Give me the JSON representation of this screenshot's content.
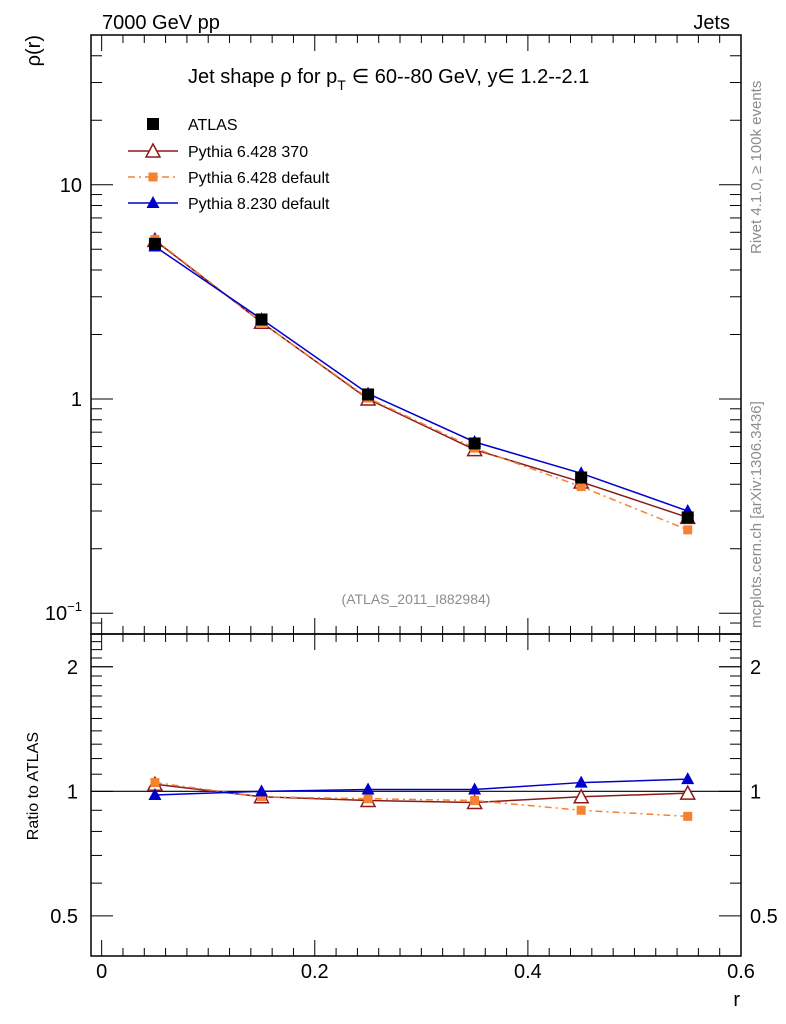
{
  "header": {
    "left": "7000 GeV pp",
    "right": "Jets"
  },
  "side_text": {
    "top": "Rivet 4.1.0, ≥ 100k events",
    "bottom": "mcplots.cern.ch [arXiv:1306.3436]"
  },
  "chart_data": {
    "type": "line",
    "title": "Jet shape ρ for p_T ∈ 60--80 GeV, y ∈ 1.2--2.1",
    "title_parts": {
      "prefix": "Jet shape ρ for p",
      "sub": "T",
      "suffix": "∈ 60--80 GeV, y∈ 1.2--2.1"
    },
    "watermark": "(ATLAS_2011_I882984)",
    "xlabel": "r",
    "ylabel_main": "ρ(r)",
    "ylabel_ratio": "Ratio to ATLAS",
    "x": [
      0.05,
      0.15,
      0.25,
      0.35,
      0.45,
      0.55
    ],
    "xlim": [
      -0.01,
      0.6
    ],
    "x_ticks": [
      0,
      0.2,
      0.4,
      0.6
    ],
    "x_tick_labels": [
      "0",
      "0.2",
      "0.4",
      "0.6"
    ],
    "ylim_main": [
      0.08,
      50
    ],
    "y_scale_main": "log",
    "y_ticks_main": [
      {
        "value": 10,
        "base": "10",
        "exp": ""
      },
      {
        "value": 1,
        "base": "1",
        "exp": ""
      },
      {
        "value": 0.1,
        "base": "10",
        "exp": "−1"
      }
    ],
    "ylim_ratio": [
      0.4,
      2.4
    ],
    "y_ticks_ratio": [
      {
        "value": 2,
        "label": "2"
      },
      {
        "value": 1,
        "label": "1"
      },
      {
        "value": 0.5,
        "label": "0.5"
      }
    ],
    "series": [
      {
        "name": "ATLAS",
        "color": "#000000",
        "marker": "square",
        "line": "none",
        "values": [
          5.3,
          2.35,
          1.05,
          0.62,
          0.43,
          0.28
        ],
        "ratio": [
          1.0,
          1.0,
          1.0,
          1.0,
          1.0,
          1.0
        ]
      },
      {
        "name": "Pythia 6.428 370",
        "color": "#8b1a1a",
        "marker": "triangle-open",
        "line": "solid",
        "values": [
          5.5,
          2.28,
          1.0,
          0.58,
          0.41,
          0.28
        ],
        "ratio": [
          1.04,
          0.97,
          0.95,
          0.94,
          0.97,
          0.99
        ]
      },
      {
        "name": "Pythia 6.428 default",
        "color": "#f58231",
        "marker": "square-small",
        "line": "dashdot",
        "values": [
          5.55,
          2.28,
          1.01,
          0.59,
          0.39,
          0.245
        ],
        "ratio": [
          1.05,
          0.97,
          0.96,
          0.95,
          0.9,
          0.87
        ]
      },
      {
        "name": "Pythia 8.230 default",
        "color": "#0000cd",
        "marker": "triangle",
        "line": "solid",
        "values": [
          5.15,
          2.36,
          1.06,
          0.63,
          0.45,
          0.3
        ],
        "ratio": [
          0.98,
          1.0,
          1.01,
          1.01,
          1.05,
          1.07
        ]
      }
    ],
    "legend_position": "top-left",
    "grid": false
  }
}
